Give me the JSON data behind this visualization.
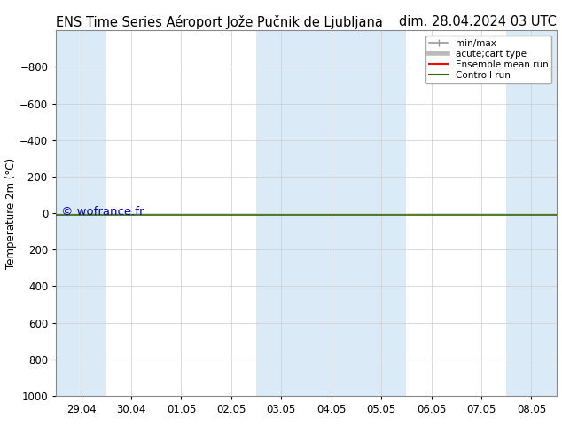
{
  "title_left": "ENS Time Series Aéroport Jože Pučnik de Ljubljana",
  "title_right": "dim. 28.04.2024 03 UTC",
  "ylabel": "Temperature 2m (°C)",
  "watermark": "© wofrance.fr",
  "xlim": [
    -0.5,
    9.5
  ],
  "ylim": [
    1000,
    -1000
  ],
  "yticks": [
    -800,
    -600,
    -400,
    -200,
    0,
    200,
    400,
    600,
    800,
    1000
  ],
  "xtick_labels": [
    "29.04",
    "30.04",
    "01.05",
    "02.05",
    "03.05",
    "04.05",
    "05.05",
    "06.05",
    "07.05",
    "08.05"
  ],
  "xtick_positions": [
    0,
    1,
    2,
    3,
    4,
    5,
    6,
    7,
    8,
    9
  ],
  "bg_color": "#ffffff",
  "plot_bg_color": "#ffffff",
  "band_color": "#daeaf7",
  "band_columns": [
    0,
    4,
    5,
    6,
    9
  ],
  "control_run_color": "#336600",
  "ensemble_mean_color": "#ff0000",
  "legend_entries": [
    {
      "label": "min/max",
      "color": "#999999",
      "lw": 1.2,
      "style": "|-|"
    },
    {
      "label": "acute;cart type",
      "color": "#bbbbbb",
      "lw": 4
    },
    {
      "label": "Ensemble mean run",
      "color": "#ff0000",
      "lw": 1.5
    },
    {
      "label": "Controll run",
      "color": "#336600",
      "lw": 1.5
    }
  ],
  "title_fontsize": 10.5,
  "tick_fontsize": 8.5,
  "ylabel_fontsize": 8.5,
  "watermark_color": "#0000cc",
  "watermark_fontsize": 9.5,
  "grid_color": "#cccccc",
  "spine_color": "#888888"
}
